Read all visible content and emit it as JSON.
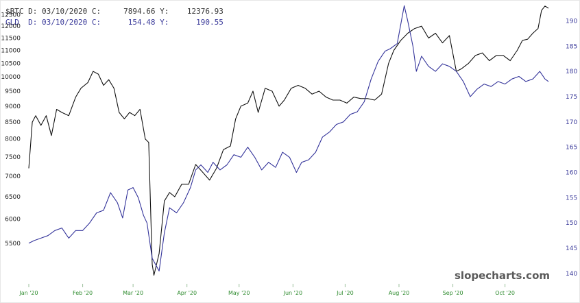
{
  "readout": {
    "btc": "$BTC D: 03/10/2020 C:     7894.66 Y:    12376.93",
    "gld": "GLD  D: 03/10/2020 C:      154.48 Y:      190.55"
  },
  "watermark": "slopecharts.com",
  "chart_data": {
    "type": "line",
    "x_tick_labels": [
      "Jan '20",
      "Feb '20",
      "Mar '20",
      "Apr '20",
      "May '20",
      "Jun '20",
      "Jul '20",
      "Aug '20",
      "Sep '20",
      "Oct '20"
    ],
    "left_axis": {
      "ticks": [
        5500,
        6000,
        6500,
        7000,
        7500,
        8000,
        8500,
        9000,
        9500,
        10000,
        10500,
        11000,
        11500,
        12000,
        12500
      ],
      "scale": "log",
      "range": [
        4800,
        12800
      ]
    },
    "right_axis": {
      "ticks": [
        140,
        145,
        150,
        155,
        160,
        165,
        170,
        175,
        180,
        185,
        190
      ],
      "range": [
        138.5,
        192.5
      ]
    },
    "grid": false,
    "series": [
      {
        "name": "$BTC",
        "axis": "left",
        "color": "#111111",
        "x": [
          "2020-01-01",
          "2020-01-03",
          "2020-01-05",
          "2020-01-08",
          "2020-01-11",
          "2020-01-14",
          "2020-01-17",
          "2020-01-20",
          "2020-01-24",
          "2020-01-28",
          "2020-01-31",
          "2020-02-04",
          "2020-02-07",
          "2020-02-10",
          "2020-02-13",
          "2020-02-16",
          "2020-02-19",
          "2020-02-22",
          "2020-02-25",
          "2020-02-28",
          "2020-03-02",
          "2020-03-05",
          "2020-03-08",
          "2020-03-10",
          "2020-03-12",
          "2020-03-13",
          "2020-03-16",
          "2020-03-19",
          "2020-03-22",
          "2020-03-25",
          "2020-03-29",
          "2020-04-02",
          "2020-04-06",
          "2020-04-10",
          "2020-04-14",
          "2020-04-18",
          "2020-04-22",
          "2020-04-26",
          "2020-04-29",
          "2020-05-02",
          "2020-05-06",
          "2020-05-09",
          "2020-05-12",
          "2020-05-16",
          "2020-05-20",
          "2020-05-24",
          "2020-05-27",
          "2020-05-31",
          "2020-06-04",
          "2020-06-08",
          "2020-06-12",
          "2020-06-16",
          "2020-06-20",
          "2020-06-24",
          "2020-06-28",
          "2020-07-02",
          "2020-07-06",
          "2020-07-10",
          "2020-07-14",
          "2020-07-18",
          "2020-07-22",
          "2020-07-26",
          "2020-07-29",
          "2020-08-02",
          "2020-08-06",
          "2020-08-10",
          "2020-08-14",
          "2020-08-18",
          "2020-08-22",
          "2020-08-26",
          "2020-08-30",
          "2020-09-03",
          "2020-09-06",
          "2020-09-10",
          "2020-09-14",
          "2020-09-18",
          "2020-09-22",
          "2020-09-26",
          "2020-09-30",
          "2020-10-04",
          "2020-10-08",
          "2020-10-11",
          "2020-10-14",
          "2020-10-17",
          "2020-10-20",
          "2020-10-22",
          "2020-10-24",
          "2020-10-26"
        ],
        "values": [
          7200,
          8500,
          8700,
          8400,
          8700,
          8100,
          8900,
          8800,
          8700,
          9300,
          9600,
          9800,
          10200,
          10100,
          9700,
          9900,
          9600,
          8800,
          8600,
          8800,
          8700,
          8900,
          8000,
          7900,
          5100,
          4900,
          5300,
          6400,
          6600,
          6500,
          6800,
          6800,
          7300,
          7100,
          6900,
          7200,
          7700,
          7800,
          8600,
          9000,
          9100,
          9500,
          8800,
          9600,
          9500,
          9000,
          9200,
          9600,
          9700,
          9600,
          9400,
          9500,
          9300,
          9200,
          9200,
          9100,
          9300,
          9250,
          9250,
          9200,
          9400,
          10500,
          11000,
          11400,
          11700,
          11900,
          12000,
          11500,
          11700,
          11300,
          11600,
          10200,
          10300,
          10500,
          10800,
          10900,
          10600,
          10800,
          10800,
          10600,
          11000,
          11400,
          11450,
          11700,
          11900,
          12700,
          12900,
          12800
        ]
      },
      {
        "name": "GLD",
        "axis": "right",
        "color": "#33339a",
        "x": [
          "2020-01-01",
          "2020-01-04",
          "2020-01-08",
          "2020-01-12",
          "2020-01-16",
          "2020-01-20",
          "2020-01-24",
          "2020-01-28",
          "2020-02-01",
          "2020-02-05",
          "2020-02-09",
          "2020-02-13",
          "2020-02-17",
          "2020-02-21",
          "2020-02-24",
          "2020-02-27",
          "2020-03-01",
          "2020-03-04",
          "2020-03-07",
          "2020-03-09",
          "2020-03-12",
          "2020-03-16",
          "2020-03-19",
          "2020-03-22",
          "2020-03-26",
          "2020-03-30",
          "2020-04-03",
          "2020-04-06",
          "2020-04-09",
          "2020-04-13",
          "2020-04-16",
          "2020-04-20",
          "2020-04-24",
          "2020-04-28",
          "2020-05-02",
          "2020-05-06",
          "2020-05-10",
          "2020-05-14",
          "2020-05-18",
          "2020-05-22",
          "2020-05-26",
          "2020-05-30",
          "2020-06-03",
          "2020-06-06",
          "2020-06-10",
          "2020-06-14",
          "2020-06-18",
          "2020-06-22",
          "2020-06-26",
          "2020-06-30",
          "2020-07-04",
          "2020-07-08",
          "2020-07-12",
          "2020-07-16",
          "2020-07-20",
          "2020-07-24",
          "2020-07-27",
          "2020-07-31",
          "2020-08-04",
          "2020-08-06",
          "2020-08-09",
          "2020-08-11",
          "2020-08-14",
          "2020-08-18",
          "2020-08-22",
          "2020-08-26",
          "2020-08-30",
          "2020-09-03",
          "2020-09-07",
          "2020-09-11",
          "2020-09-15",
          "2020-09-19",
          "2020-09-23",
          "2020-09-27",
          "2020-10-01",
          "2020-10-05",
          "2020-10-09",
          "2020-10-13",
          "2020-10-17",
          "2020-10-21",
          "2020-10-24",
          "2020-10-26"
        ],
        "values": [
          146,
          146.5,
          147,
          147.5,
          148.5,
          149,
          147,
          148.5,
          148.5,
          150,
          152,
          152.5,
          156,
          154,
          151,
          156.5,
          157,
          155,
          151.5,
          150,
          143,
          140.5,
          148,
          153,
          152,
          154,
          157,
          160.5,
          161.5,
          160,
          162,
          160.5,
          161.5,
          163.5,
          163,
          165,
          163,
          160.5,
          162,
          161,
          164,
          163,
          160,
          162,
          162.5,
          164,
          167,
          168,
          169.5,
          170,
          171.5,
          172,
          174,
          178.5,
          182,
          184,
          184.5,
          185.5,
          193,
          190,
          185,
          180,
          183,
          181,
          180,
          181.5,
          181,
          180,
          178,
          175,
          176.5,
          177.5,
          177,
          178,
          177.5,
          178.5,
          179,
          178,
          178.5,
          180,
          178.5,
          178
        ]
      }
    ]
  }
}
